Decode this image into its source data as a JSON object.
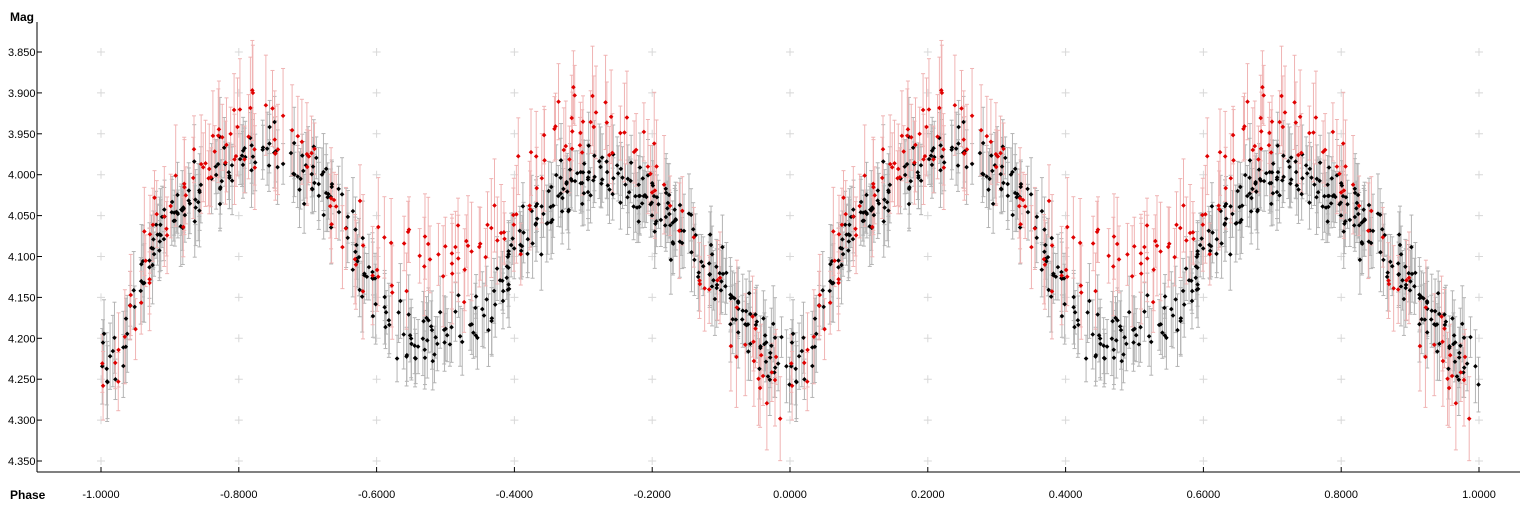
{
  "chart_data": {
    "type": "scatter",
    "title": "",
    "xlabel": "Phase",
    "ylabel": "Mag",
    "xlim": [
      -1.0,
      1.0
    ],
    "ylim": [
      3.85,
      4.35
    ],
    "y_inverted": true,
    "x_ticks": [
      -1.0,
      -0.8,
      -0.6,
      -0.4,
      -0.2,
      0.0,
      0.2,
      0.4,
      0.6,
      0.8,
      1.0
    ],
    "x_tick_labels": [
      "-1.0000",
      "-0.8000",
      "-0.6000",
      "-0.4000",
      "-0.2000",
      "0.0000",
      "0.2000",
      "0.4000",
      "0.6000",
      "0.8000",
      "1.0000"
    ],
    "y_ticks": [
      3.85,
      3.9,
      3.95,
      4.0,
      4.05,
      4.1,
      4.15,
      4.2,
      4.25,
      4.3,
      4.35
    ],
    "y_tick_labels": [
      "3.850",
      "3.900",
      "3.950",
      "4.000",
      "4.050",
      "4.100",
      "4.150",
      "4.200",
      "4.250",
      "4.300",
      "4.350"
    ],
    "grid": "plus-markers",
    "legend": "none",
    "error_bars": true,
    "series": [
      {
        "color": "#000000",
        "error_color": "#b4b4b4",
        "phase": [
          0.0,
          0.02,
          0.04,
          0.06,
          0.08,
          0.1,
          0.12,
          0.14,
          0.16,
          0.18,
          0.2,
          0.22,
          0.24,
          0.26,
          0.28,
          0.3,
          0.32,
          0.34,
          0.36,
          0.38,
          0.4,
          0.42,
          0.44,
          0.46,
          0.48,
          0.5,
          0.52,
          0.54,
          0.56,
          0.58,
          0.6,
          0.62,
          0.64,
          0.66,
          0.68,
          0.7,
          0.72,
          0.74,
          0.76,
          0.78,
          0.8,
          0.82,
          0.84,
          0.86,
          0.88,
          0.9,
          0.92,
          0.94,
          0.96,
          0.98,
          1.0
        ],
        "mag": [
          4.24,
          4.22,
          4.18,
          4.13,
          4.08,
          4.05,
          4.04,
          4.03,
          4.01,
          3.99,
          3.98,
          3.97,
          3.96,
          3.97,
          3.98,
          3.99,
          4.01,
          4.04,
          4.07,
          4.11,
          4.15,
          4.18,
          4.2,
          4.21,
          4.21,
          4.2,
          4.19,
          4.18,
          4.16,
          4.13,
          4.1,
          4.07,
          4.05,
          4.03,
          4.02,
          4.01,
          4.0,
          4.0,
          4.01,
          4.02,
          4.03,
          4.05,
          4.07,
          4.09,
          4.11,
          4.13,
          4.16,
          4.18,
          4.2,
          4.22,
          4.24
        ],
        "err": 0.035,
        "points_per_bin": 9,
        "spread": 0.04
      },
      {
        "color": "#e00000",
        "error_color": "#f0b4b4",
        "phase": [
          0.0,
          0.02,
          0.04,
          0.06,
          0.08,
          0.1,
          0.12,
          0.14,
          0.16,
          0.18,
          0.2,
          0.22,
          0.24,
          0.26,
          0.28,
          0.3,
          0.32,
          0.34,
          0.36,
          0.38,
          0.4,
          0.42,
          0.44,
          0.46,
          0.48,
          0.5,
          0.52,
          0.54,
          0.56,
          0.58,
          0.6,
          0.62,
          0.64,
          0.66,
          0.68,
          0.7,
          0.72,
          0.74,
          0.76,
          0.78,
          0.8,
          0.82,
          0.84,
          0.86,
          0.88,
          0.9,
          0.92,
          0.94,
          0.96,
          0.98,
          1.0
        ],
        "mag": [
          4.25,
          4.23,
          4.19,
          4.12,
          4.06,
          4.03,
          4.01,
          4.0,
          3.98,
          3.96,
          3.95,
          3.94,
          3.93,
          3.94,
          3.96,
          3.98,
          4.01,
          4.04,
          4.07,
          4.09,
          4.1,
          4.11,
          4.11,
          4.11,
          4.1,
          4.1,
          4.1,
          4.09,
          4.08,
          4.06,
          4.04,
          4.01,
          3.98,
          3.96,
          3.95,
          3.94,
          3.94,
          3.95,
          3.96,
          3.98,
          4.0,
          4.03,
          4.07,
          4.11,
          4.14,
          4.17,
          4.19,
          4.21,
          4.23,
          4.25,
          4.26
        ],
        "err": 0.045,
        "points_per_bin": 4,
        "spread": 0.05
      }
    ]
  }
}
